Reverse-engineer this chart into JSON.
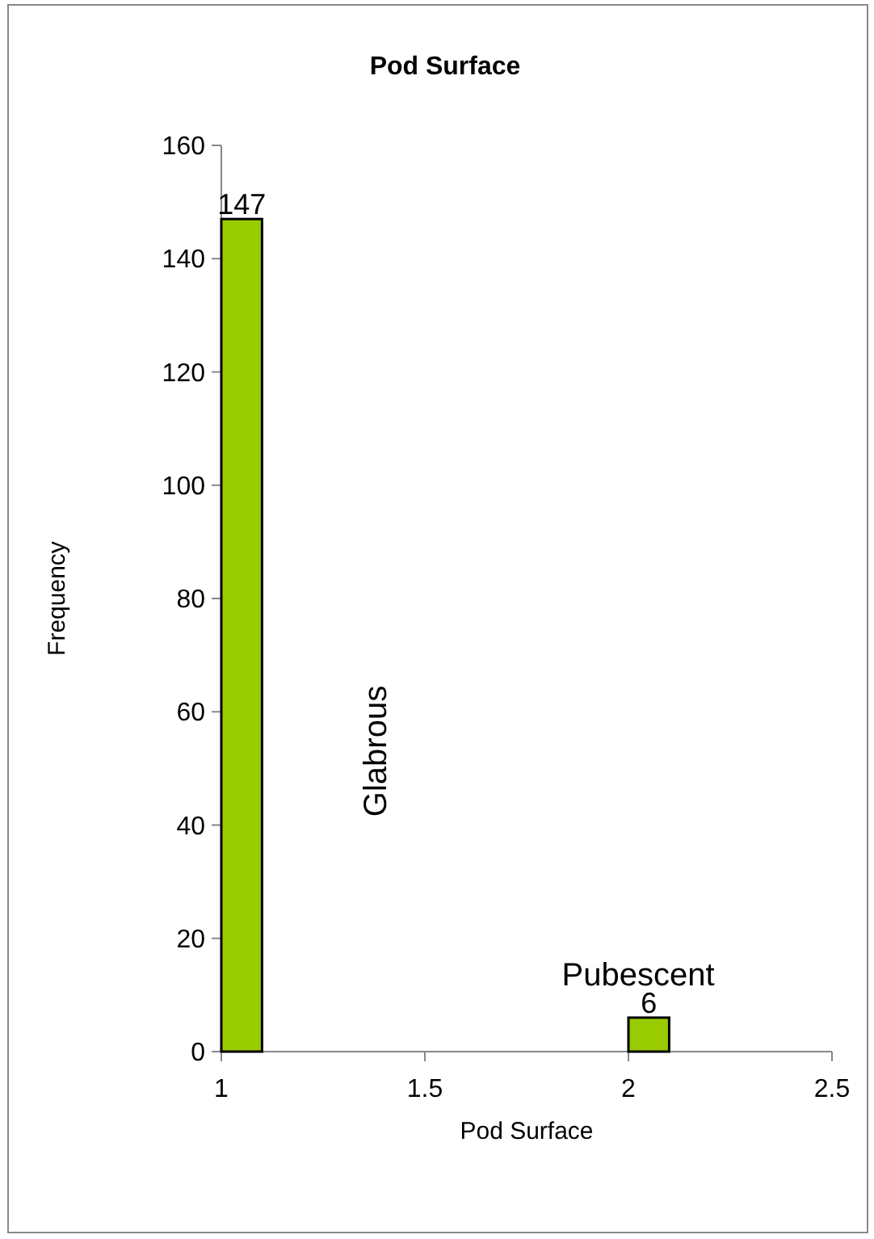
{
  "chart_data": {
    "type": "histogram",
    "title": "Pod Surface",
    "xlabel": "Pod Surface",
    "ylabel": "Frequency",
    "bins": [
      1,
      1.1,
      1.2,
      1.3,
      1.4,
      1.5,
      1.6,
      1.7,
      1.8,
      1.9,
      2,
      2.1
    ],
    "values": [
      147,
      0,
      0,
      0,
      0,
      0,
      0,
      0,
      0,
      0,
      6
    ],
    "value_labels": [
      "147",
      null,
      null,
      null,
      null,
      null,
      null,
      null,
      null,
      null,
      "6"
    ],
    "color": "#99cc00",
    "xlim": [
      1,
      2.5
    ],
    "xticks": [
      1,
      1.5,
      2,
      2.5
    ],
    "ylim": [
      0,
      160
    ],
    "yticks": [
      0,
      20,
      40,
      60,
      80,
      100,
      120,
      140,
      160
    ],
    "annotations": [
      "Glabrous",
      "Pubescent"
    ]
  }
}
